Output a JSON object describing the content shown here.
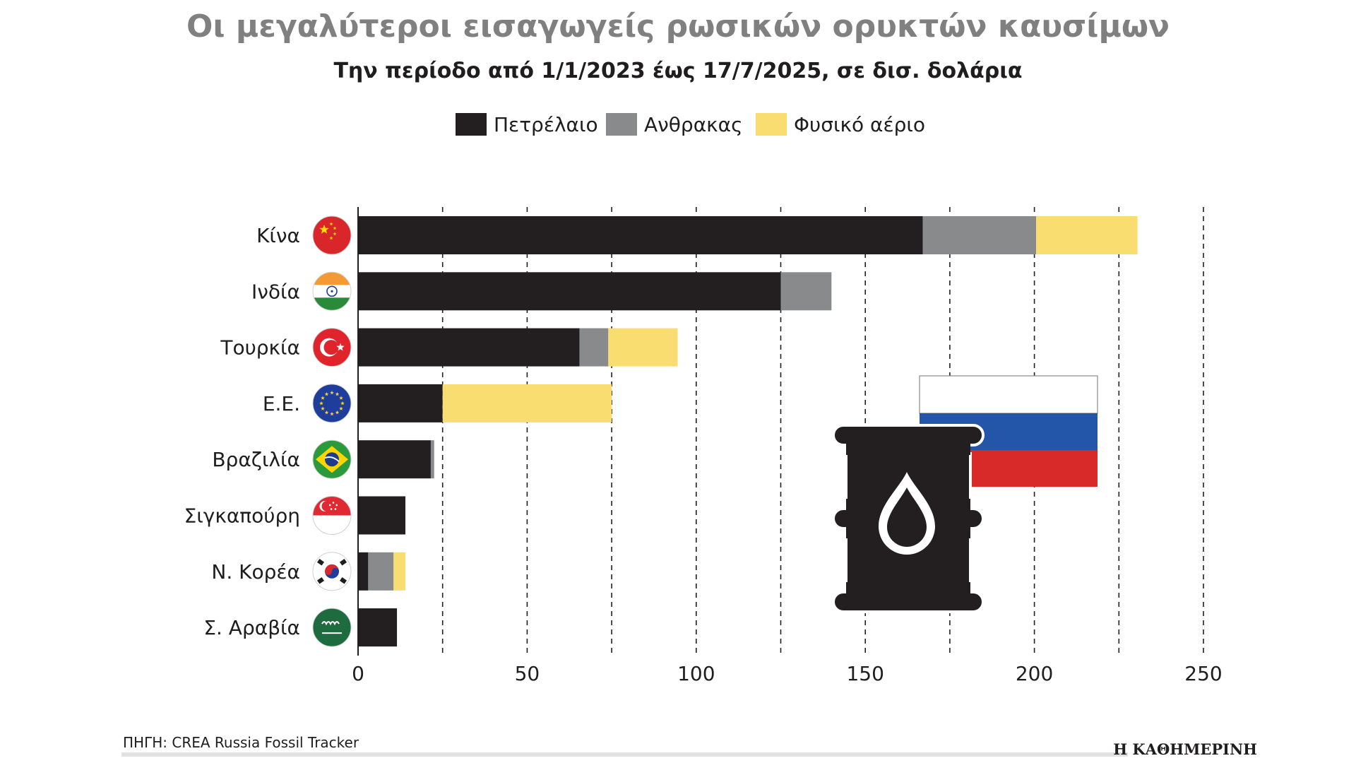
{
  "header": {
    "title": "Οι μεγαλύτεροι εισαγωγείς ρωσικών ορυκτών καυσίμων",
    "subtitle": "Την περίοδο από 1/1/2023 έως 17/7/2025, σε δισ. δολάρια"
  },
  "footer": {
    "source": "ΠΗΓΗ: CREA Russia Fossil Tracker",
    "publisher": "Η ΚΑΘΗΜΕΡΙΝΗ"
  },
  "colors": {
    "oil": "#231f20",
    "coal": "#898a8c",
    "gas": "#f9dd70",
    "grid": "#231f20",
    "russia_white": "#ffffff",
    "russia_blue": "#2356a8",
    "russia_red": "#d92a2a"
  },
  "icons": {
    "barrel": "oil-barrel-icon",
    "flag": "russia-flag-icon"
  },
  "chart_data": {
    "type": "bar",
    "orientation": "horizontal",
    "stacked": true,
    "categories": [
      "Κίνα",
      "Ινδία",
      "Τουρκία",
      "Ε.Ε.",
      "Βραζιλία",
      "Σιγκαπούρη",
      "Ν. Κορέα",
      "Σ. Αραβία"
    ],
    "flags": [
      "china",
      "india",
      "turkey",
      "eu",
      "brazil",
      "singapore",
      "south-korea",
      "saudi-arabia"
    ],
    "series": [
      {
        "name": "Πετρέλαιο",
        "color_key": "oil",
        "values": [
          167,
          125,
          65.5,
          25,
          21.5,
          14,
          3,
          11.5
        ]
      },
      {
        "name": "Ανθρακας",
        "color_key": "coal",
        "values": [
          33.5,
          15,
          8.5,
          0,
          1,
          0,
          7.5,
          0
        ]
      },
      {
        "name": "Φυσικό αέριο",
        "color_key": "gas",
        "values": [
          30,
          0,
          20.5,
          50,
          0,
          0,
          3.5,
          0
        ]
      }
    ],
    "xlim": [
      0,
      250
    ],
    "xticks": [
      0,
      50,
      100,
      150,
      200,
      250
    ],
    "tick_labels": [
      "0",
      "50",
      "100",
      "150",
      "200",
      "250"
    ],
    "gridlines": [
      25,
      50,
      75,
      100,
      125,
      150,
      175,
      200,
      225,
      250
    ],
    "legend_position": "top-center",
    "title": "Οι μεγαλύτεροι εισαγωγείς ρωσικών ορυκτών καυσίμων",
    "xlabel": "",
    "ylabel": ""
  }
}
